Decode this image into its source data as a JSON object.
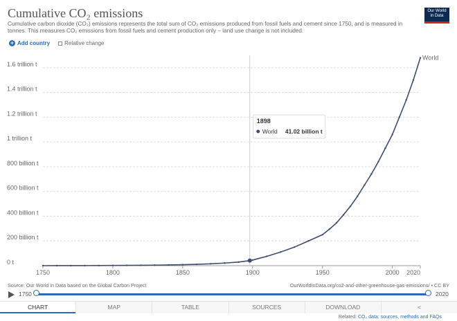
{
  "header": {
    "title": "Cumulative CO₂ emissions",
    "subtitle": "Cumulative carbon dioxide (CO₂) emissions represents the total sum of CO₂ emissions produced from fossil fuels and cement since 1750, and is measured in tonnes. This measures CO₂ emissions from fossil fuels and cement production only – land use change is not included.",
    "logo_line1": "Our World",
    "logo_line2": "in Data"
  },
  "controls": {
    "add_country": "Add country",
    "relative_change": "Relative change"
  },
  "chart_data": {
    "type": "line",
    "series": [
      {
        "name": "World",
        "color": "#3d4d6b",
        "x": [
          1750,
          1760,
          1770,
          1780,
          1790,
          1800,
          1810,
          1820,
          1830,
          1840,
          1850,
          1860,
          1870,
          1880,
          1890,
          1898,
          1900,
          1910,
          1920,
          1930,
          1940,
          1950,
          1955,
          1960,
          1965,
          1970,
          1975,
          1980,
          1985,
          1990,
          1995,
          2000,
          2005,
          2010,
          2015,
          2020
        ],
        "y": [
          0,
          0.12,
          0.3,
          0.6,
          1,
          1.5,
          2.2,
          3,
          4.2,
          6,
          8,
          11,
          15,
          21,
          29,
          41.02,
          45,
          75,
          110,
          150,
          200,
          250,
          295,
          345,
          410,
          480,
          560,
          650,
          740,
          840,
          950,
          1060,
          1200,
          1340,
          1500,
          1680
        ]
      }
    ],
    "y_unit": "billion t",
    "xlim": [
      1750,
      2020
    ],
    "ylim": [
      0,
      1700
    ],
    "x_ticks": [
      1750,
      1800,
      1850,
      1900,
      1950,
      2000,
      2020
    ],
    "y_ticks": [
      {
        "value": 0,
        "label": "0 t"
      },
      {
        "value": 200,
        "label": "200 billion t"
      },
      {
        "value": 400,
        "label": "400 billion t"
      },
      {
        "value": 600,
        "label": "600 billion t"
      },
      {
        "value": 800,
        "label": "800 billion t"
      },
      {
        "value": 1000,
        "label": "1 trillion t"
      },
      {
        "value": 1200,
        "label": "1.2 trillion t"
      },
      {
        "value": 1400,
        "label": "1.4 trillion t"
      },
      {
        "value": 1600,
        "label": "1.6 trillion t"
      }
    ],
    "series_label": "World",
    "grid": true,
    "tooltip": {
      "year": "1898",
      "series": "World",
      "value_label": "41.02 billion t",
      "x": 1898,
      "y": 41.02
    }
  },
  "footer": {
    "source": "Source: Our World in Data based on the Global Carbon Project",
    "url": "OurWorldInData.org/co2-and-other-greenhouse-gas-emissions/ • CC BY",
    "timeline_start": "1750",
    "timeline_end": "2020",
    "tabs": [
      "CHART",
      "MAP",
      "TABLE",
      "SOURCES",
      "DOWNLOAD",
      "<"
    ],
    "related_prefix": "Related:",
    "related_link": "CO₂ data: sources, methods and FAQs"
  }
}
